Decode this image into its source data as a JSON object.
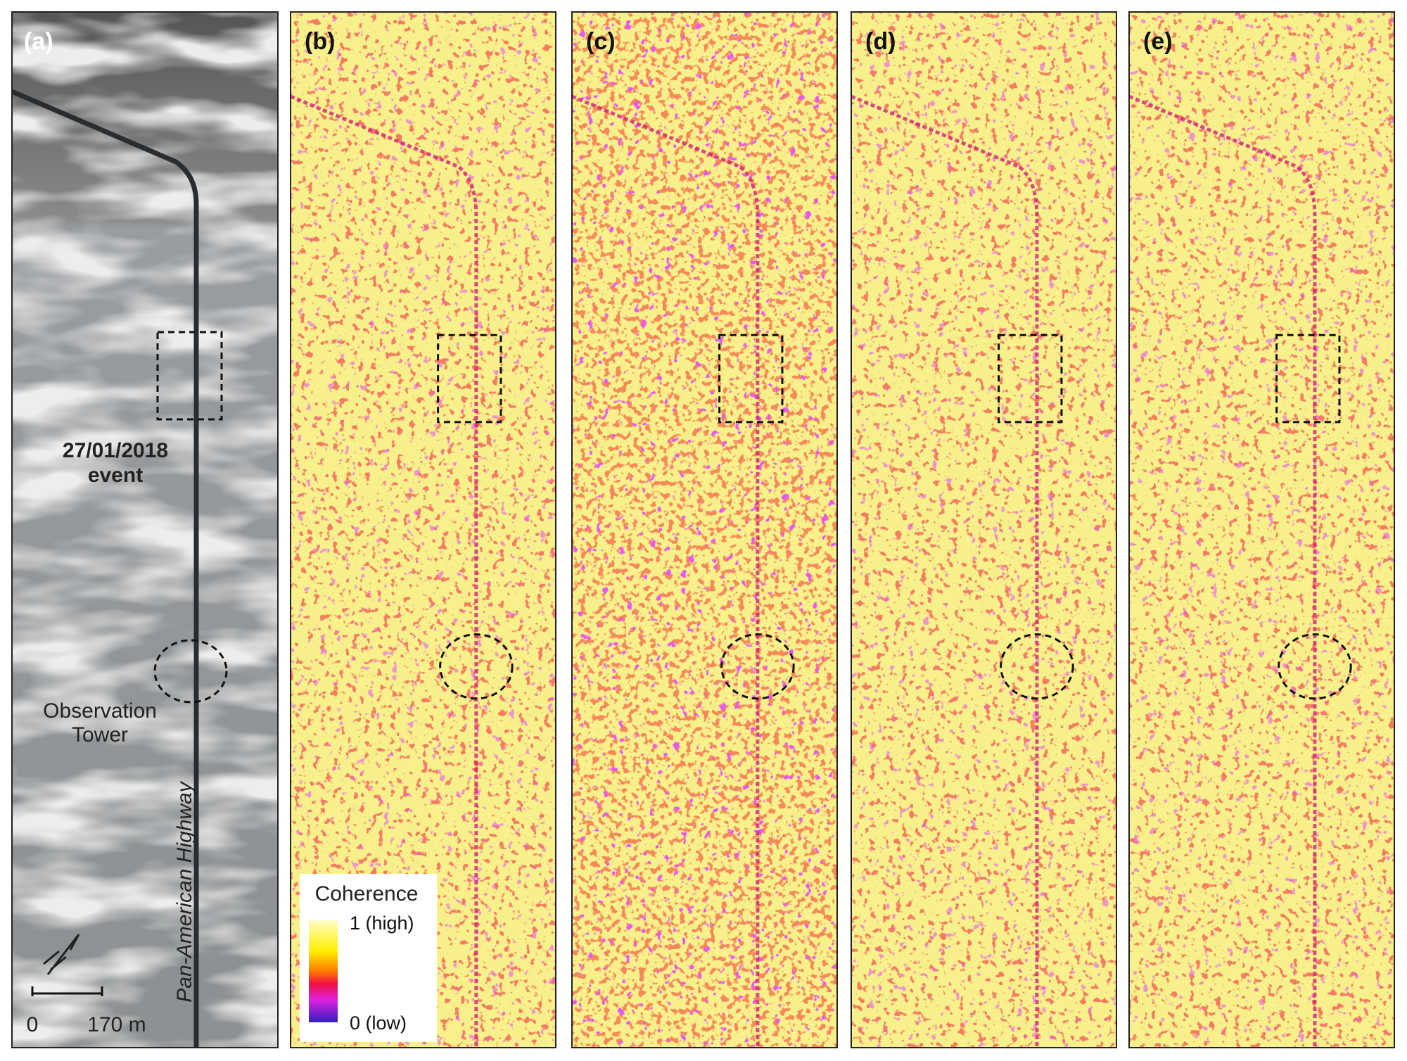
{
  "panels": [
    {
      "label": "(a)"
    },
    {
      "label": "(b)"
    },
    {
      "label": "(c)"
    },
    {
      "label": "(d)"
    },
    {
      "label": "(e)"
    }
  ],
  "annotations": {
    "event_date": "27/01/2018",
    "event_word": "event",
    "tower_line1": "Observation",
    "tower_line2": "Tower",
    "road": "Pan-American Highway"
  },
  "scale_bar": {
    "start": "0",
    "end": "170 m"
  },
  "legend": {
    "title": "Coherence",
    "high": "1 (high)",
    "low": "0 (low)"
  }
}
